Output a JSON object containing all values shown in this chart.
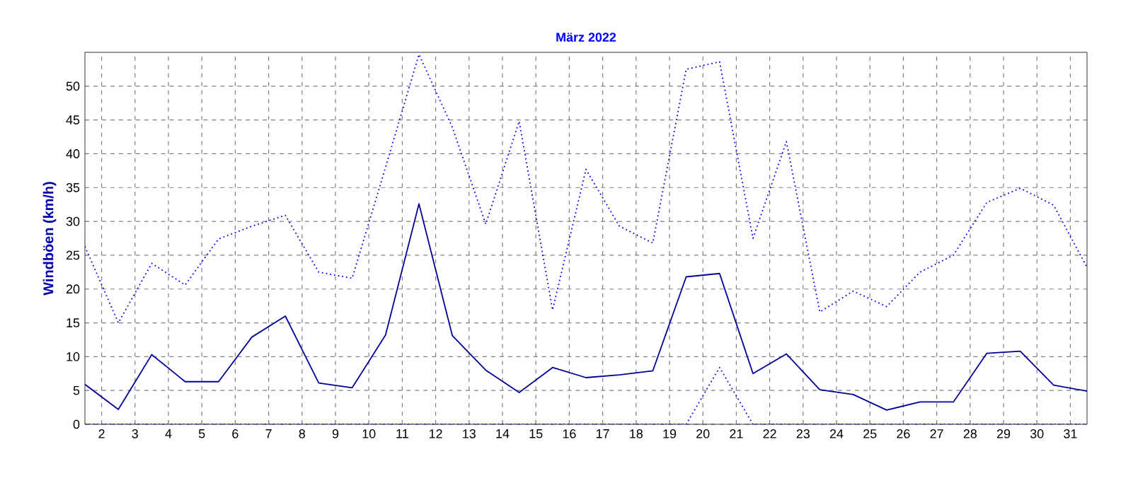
{
  "chart_data": {
    "type": "line",
    "title": "März 2022",
    "ylabel": "Windböen (km/h)",
    "x": [
      1.5,
      2.5,
      3.5,
      4.5,
      5.5,
      6.5,
      7.5,
      8.5,
      9.5,
      10.5,
      11.5,
      12.5,
      13.5,
      14.5,
      15.5,
      16.5,
      17.5,
      18.5,
      19.5,
      20.5,
      21.5,
      22.5,
      23.5,
      24.5,
      25.5,
      26.5,
      27.5,
      28.5,
      29.5,
      30.5,
      31.5
    ],
    "series": [
      {
        "color": "#0000ff",
        "line_style": "dotted",
        "values": [
          26.3,
          15.0,
          23.8,
          20.6,
          27.4,
          29.3,
          30.9,
          22.5,
          21.6,
          38.0,
          54.7,
          43.9,
          29.6,
          44.8,
          16.9,
          37.7,
          29.3,
          26.8,
          52.5,
          53.6,
          27.5,
          41.8,
          16.6,
          19.7,
          17.4,
          22.5,
          25.0,
          32.8,
          34.9,
          32.4,
          23.2
        ]
      },
      {
        "color": "#000099",
        "line_style": "solid",
        "values": [
          5.9,
          2.2,
          10.3,
          6.3,
          6.3,
          12.9,
          16.0,
          6.1,
          5.4,
          13.2,
          32.6,
          13.1,
          8.0,
          4.7,
          8.4,
          6.9,
          7.3,
          7.9,
          21.8,
          22.3,
          7.5,
          10.4,
          5.1,
          4.4,
          2.1,
          3.3,
          3.3,
          10.5,
          10.8,
          5.8,
          4.9
        ]
      },
      {
        "color": "#0000ff",
        "line_style": "dotted",
        "values": [
          0,
          0,
          0,
          0,
          0,
          0,
          0,
          0,
          0,
          0,
          0,
          0,
          0,
          0,
          0,
          0,
          0,
          0,
          0,
          8.4,
          0,
          0,
          0,
          0,
          0,
          0,
          0,
          0,
          0,
          0,
          0
        ]
      }
    ],
    "xlim": [
      1.5,
      31.5
    ],
    "ylim": [
      0,
      55
    ],
    "xticks": [
      2,
      3,
      4,
      5,
      6,
      7,
      8,
      9,
      10,
      11,
      12,
      13,
      14,
      15,
      16,
      17,
      18,
      19,
      20,
      21,
      22,
      23,
      24,
      25,
      26,
      27,
      28,
      29,
      30,
      31
    ],
    "yticks": [
      0,
      5,
      10,
      15,
      20,
      25,
      30,
      35,
      40,
      45,
      50
    ],
    "grid": true,
    "marker": "none"
  }
}
